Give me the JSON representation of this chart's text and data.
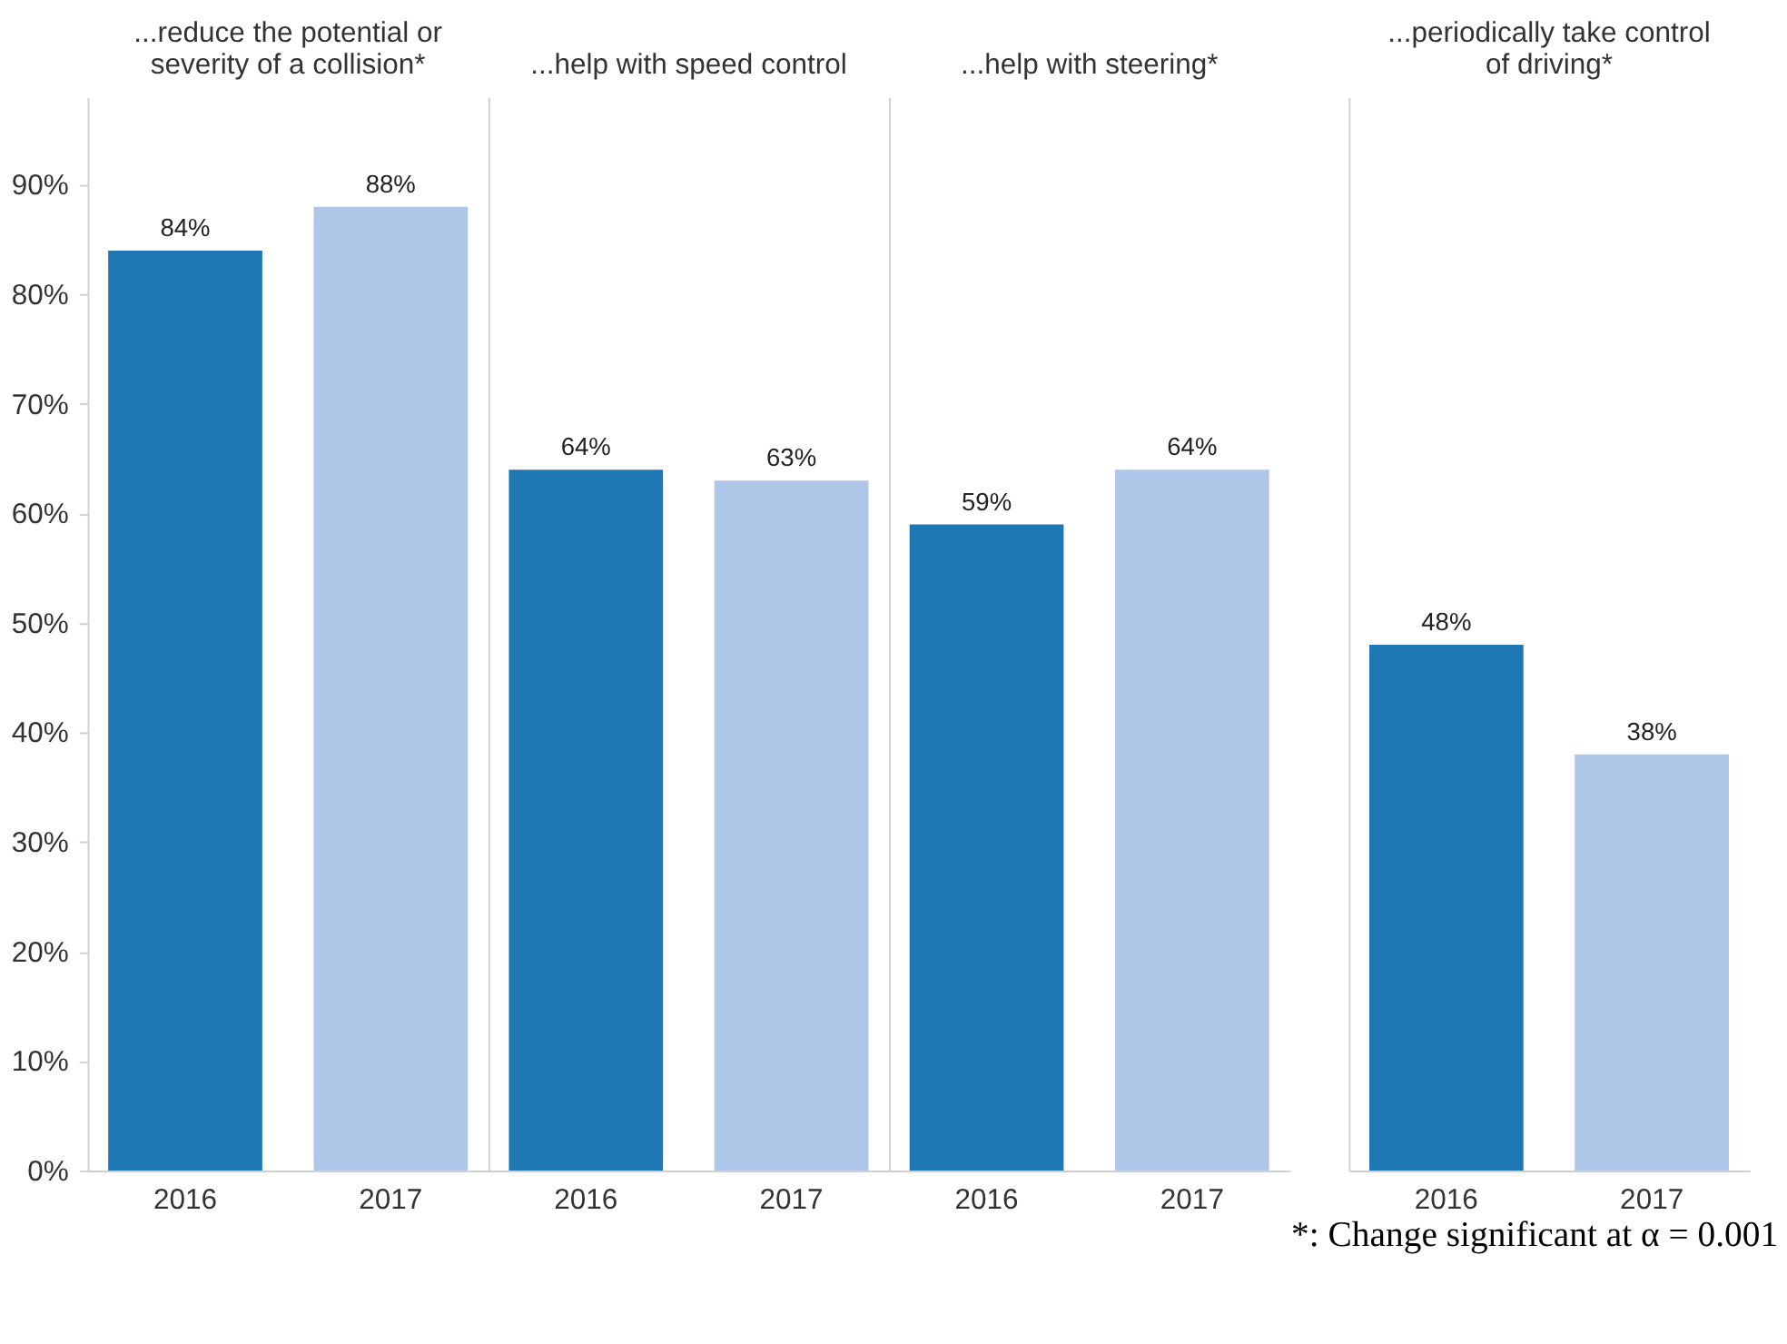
{
  "chart_data": [
    {
      "type": "bar",
      "title": "...reduce the potential or severity of a collision*",
      "categories": [
        "2016",
        "2017"
      ],
      "values": [
        84,
        88
      ],
      "colors": [
        "#1f77b4",
        "#aec7e8"
      ],
      "value_labels": [
        "84%",
        "88%"
      ],
      "ylim": [
        0,
        98
      ],
      "yticks": [
        {
          "value": 0,
          "label": "0%"
        },
        {
          "value": 10,
          "label": "10%"
        },
        {
          "value": 20,
          "label": "20%"
        },
        {
          "value": 30,
          "label": "30%"
        },
        {
          "value": 40,
          "label": "40%"
        },
        {
          "value": 50,
          "label": "50%"
        },
        {
          "value": 60,
          "label": "60%"
        },
        {
          "value": 70,
          "label": "70%"
        },
        {
          "value": 80,
          "label": "80%"
        },
        {
          "value": 90,
          "label": "90%"
        }
      ]
    },
    {
      "type": "bar",
      "title": "...help with speed control",
      "categories": [
        "2016",
        "2017"
      ],
      "values": [
        64,
        63
      ],
      "colors": [
        "#1f77b4",
        "#aec7e8"
      ],
      "value_labels": [
        "64%",
        "63%"
      ],
      "ylim": [
        0,
        98
      ],
      "tick_labels": "x"
    },
    {
      "type": "bar",
      "title": "...help with steering*",
      "categories": [
        "2016",
        "2017"
      ],
      "values": [
        59,
        64
      ],
      "colors": [
        "#1f77b4",
        "#aec7e8"
      ],
      "value_labels": [
        "59%",
        "64%"
      ],
      "ylim": [
        0,
        98
      ],
      "tick_labels": "x"
    },
    {
      "type": "bar",
      "title": "...periodically take control of driving*",
      "categories": [
        "2016",
        "2017"
      ],
      "values": [
        48,
        38
      ],
      "colors": [
        "#1f77b4",
        "#aec7e8"
      ],
      "value_labels": [
        "48%",
        "38%"
      ],
      "ylim": [
        0,
        98
      ],
      "tick_labels": "x",
      "annotations": [
        "*: Change significant at α = 0.001"
      ]
    }
  ]
}
